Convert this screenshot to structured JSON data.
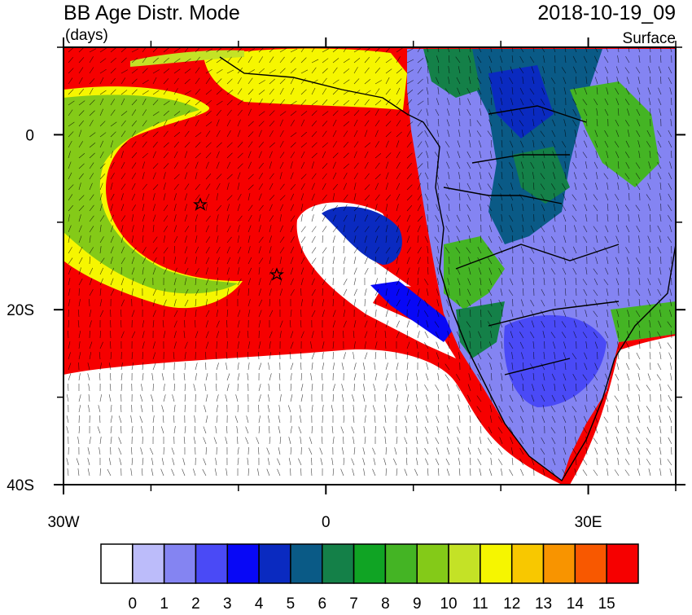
{
  "title": "BB Age Distr. Mode",
  "units": "(days)",
  "date": "2018-10-19_09",
  "level": "Surface",
  "map": {
    "xlim": [
      -30,
      40
    ],
    "ylim": [
      -40,
      10
    ],
    "xticks": [
      {
        "value": -30,
        "label": "30W"
      },
      0,
      {
        "value": 30,
        "label": "30E"
      }
    ],
    "yticks": [
      0,
      {
        "value": -20,
        "label": "20S"
      },
      {
        "value": -40,
        "label": "40S"
      }
    ],
    "xminor": [
      -20,
      -10,
      10,
      20,
      40
    ],
    "yminor": [
      10,
      -10,
      -30
    ]
  },
  "colorbar": {
    "levels": [
      0,
      1,
      2,
      3,
      4,
      5,
      6,
      7,
      8,
      9,
      10,
      11,
      12,
      13,
      14,
      15
    ],
    "colors": [
      "#ffffff",
      "#bcbcfa",
      "#8484f2",
      "#4a4af6",
      "#0808f6",
      "#0a2ac0",
      "#0a5a86",
      "#148048",
      "#10a424",
      "#44b424",
      "#84ca18",
      "#c4e226",
      "#f6f600",
      "#f8c800",
      "#f89400",
      "#f85800",
      "#f60000"
    ]
  }
}
